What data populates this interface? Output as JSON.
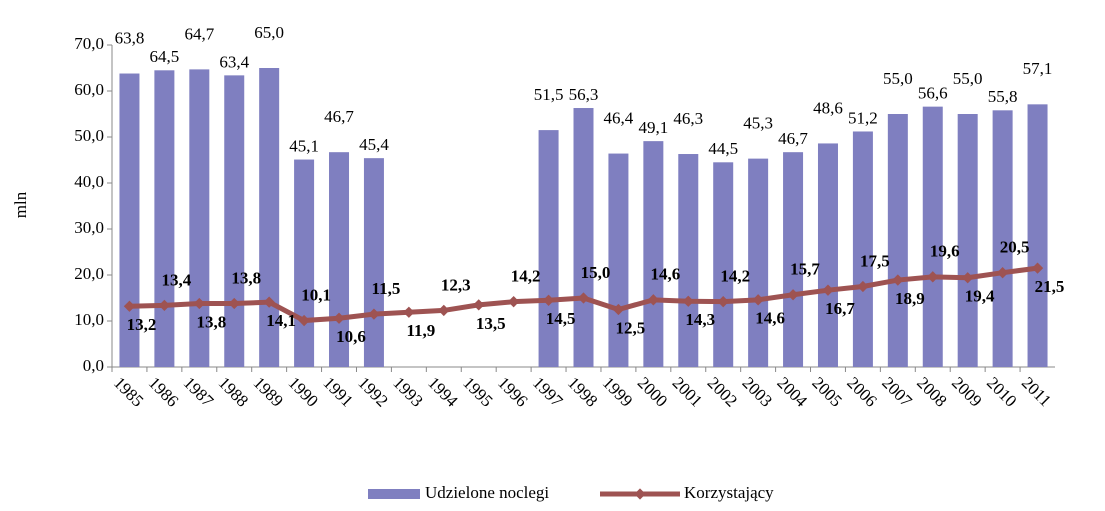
{
  "chart_data": {
    "type": "bar_line",
    "y_label": "mln",
    "categories": [
      "1985",
      "1986",
      "1987",
      "1988",
      "1989",
      "1990",
      "1991",
      "1992",
      "1993",
      "1994",
      "1995",
      "1996",
      "1997",
      "1998",
      "1999",
      "2000",
      "2001",
      "2002",
      "2003",
      "2004",
      "2005",
      "2006",
      "2007",
      "2008",
      "2009",
      "2010",
      "2011"
    ],
    "series": [
      {
        "name": "Udzielone noclegi",
        "type": "bar",
        "color": "#7f7fc0",
        "values": [
          63.8,
          64.5,
          64.7,
          63.4,
          65.0,
          45.1,
          46.7,
          45.4,
          null,
          null,
          null,
          null,
          51.5,
          56.3,
          46.4,
          49.1,
          46.3,
          44.5,
          45.3,
          46.7,
          48.6,
          51.2,
          55.0,
          56.6,
          55.0,
          55.8,
          57.1
        ],
        "value_labels": [
          "63,8",
          "64,5",
          "64,7",
          "63,4",
          "65,0",
          "45,1",
          "46,7",
          "45,4",
          null,
          null,
          null,
          null,
          "51,5",
          "56,3",
          "46,4",
          "49,1",
          "46,3",
          "44,5",
          "45,3",
          "46,7",
          "48,6",
          "51,2",
          "55,0",
          "56,6",
          "55,0",
          "55,8",
          "57,1"
        ]
      },
      {
        "name": "Korzystający",
        "type": "line",
        "color": "#9e5352",
        "values": [
          13.2,
          13.4,
          13.8,
          13.8,
          14.1,
          10.1,
          10.6,
          11.5,
          11.9,
          12.3,
          13.5,
          14.2,
          14.5,
          15.0,
          12.5,
          14.6,
          14.3,
          14.2,
          14.6,
          15.7,
          16.7,
          17.5,
          18.9,
          19.6,
          19.4,
          20.5,
          21.5
        ],
        "value_labels": [
          "13,2",
          "13,4",
          "13,8",
          "13,8",
          "14,1",
          "10,1",
          "10,6",
          "11,5",
          "11,9",
          "12,3",
          "13,5",
          "14,2",
          "14,5",
          "15,0",
          "12,5",
          "14,6",
          "14,3",
          "14,2",
          "14,6",
          "15,7",
          "16,7",
          "17,5",
          "18,9",
          "19,6",
          "19,4",
          "20,5",
          "21,5"
        ]
      }
    ],
    "ylim": [
      0,
      70
    ],
    "yticks": [
      {
        "value": 0,
        "label": "0,0"
      },
      {
        "value": 10,
        "label": "10,0"
      },
      {
        "value": 20,
        "label": "20,0"
      },
      {
        "value": 30,
        "label": "30,0"
      },
      {
        "value": 40,
        "label": "40,0"
      },
      {
        "value": 50,
        "label": "50,0"
      },
      {
        "value": 60,
        "label": "60,0"
      },
      {
        "value": 70,
        "label": "70,0"
      }
    ],
    "legend": "bottom"
  }
}
